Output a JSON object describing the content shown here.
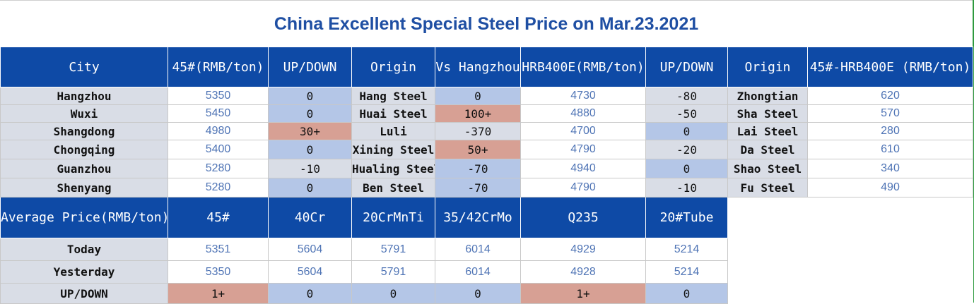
{
  "title": "China Excellent Special Steel Price on Mar.23.2021",
  "table1": {
    "headers": [
      "City",
      "45#(RMB/ton)",
      "UP/DOWN",
      "Origin",
      "Vs Hangzhou",
      "HRB400E(RMB/ton)",
      "UP/DOWN",
      "Origin",
      "45#-HRB400E (RMB/ton)"
    ],
    "rows": [
      {
        "city": "Hangzhou",
        "p45": "5350",
        "ud45": "0",
        "origin": "Hang Steel",
        "vs": "0",
        "hrb": "4730",
        "udhrb": "-80",
        "origin2": "Zhongtian",
        "diff": "620"
      },
      {
        "city": "Wuxi",
        "p45": "5450",
        "ud45": "0",
        "origin": "Huai Steel",
        "vs": "100+",
        "hrb": "4880",
        "udhrb": "-50",
        "origin2": "Sha Steel",
        "diff": "570"
      },
      {
        "city": "Shangdong",
        "p45": "4980",
        "ud45": "30+",
        "origin": "Luli",
        "vs": "-370",
        "hrb": "4700",
        "udhrb": "0",
        "origin2": "Lai Steel",
        "diff": "280"
      },
      {
        "city": "Chongqing",
        "p45": "5400",
        "ud45": "0",
        "origin": "Xining Steel",
        "vs": "50+",
        "hrb": "4790",
        "udhrb": "-20",
        "origin2": "Da Steel",
        "diff": "610"
      },
      {
        "city": "Guanzhou",
        "p45": "5280",
        "ud45": "-10",
        "origin": "Hualing Steel",
        "vs": "-70",
        "hrb": "4940",
        "udhrb": "0",
        "origin2": "Shao Steel",
        "diff": "340"
      },
      {
        "city": "Shenyang",
        "p45": "5280",
        "ud45": "0",
        "origin": "Ben Steel",
        "vs": "-70",
        "hrb": "4790",
        "udhrb": "-10",
        "origin2": "Fu Steel",
        "diff": "490"
      }
    ]
  },
  "table2": {
    "headers": [
      "Average Price(RMB/ton)",
      "45#",
      "40Cr",
      "20CrMnTi",
      "35/42CrMo",
      "Q235",
      "20#Tube"
    ],
    "rows": [
      {
        "label": "Today",
        "values": [
          "5351",
          "5604",
          "5791",
          "6014",
          "4929",
          "5214"
        ]
      },
      {
        "label": "Yesterday",
        "values": [
          "5350",
          "5604",
          "5791",
          "6014",
          "4928",
          "5214"
        ]
      },
      {
        "label": "UP/DOWN",
        "values": [
          "1+",
          "0",
          "0",
          "0",
          "1+",
          "0"
        ]
      }
    ]
  },
  "colors": {
    "header_blue": "#0e4aa6",
    "title_blue": "#1f4fa3",
    "up_red": "#d7a094",
    "flat_blue": "#b4c6e7",
    "down_gray": "#d9dde6",
    "number_blue": "#4f74b5"
  }
}
